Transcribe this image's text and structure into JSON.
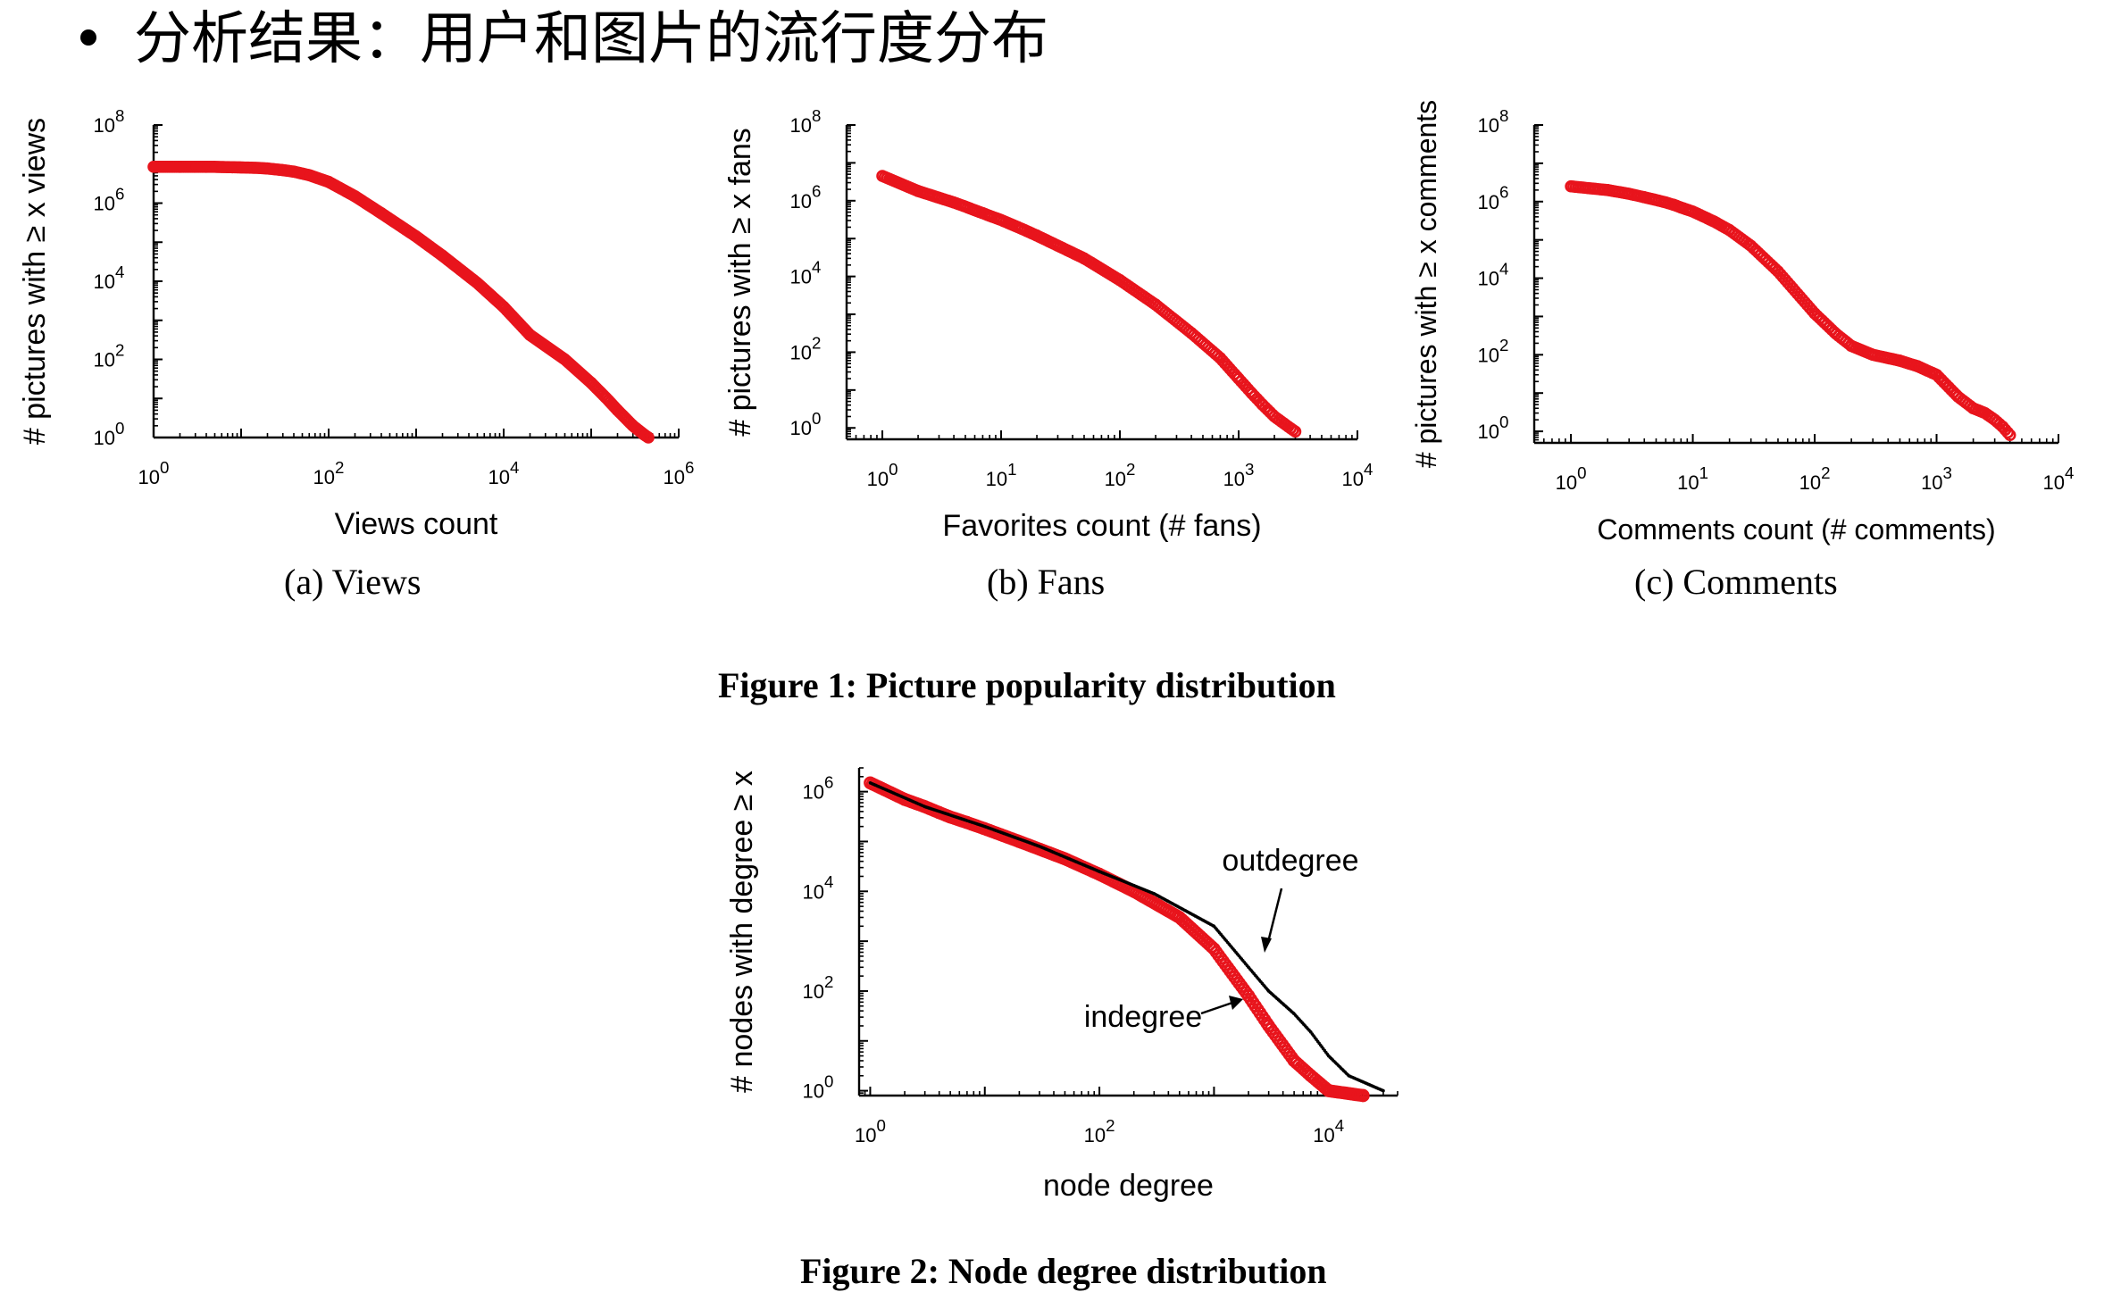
{
  "slide": {
    "heading": "分析结果：用户和图片的流行度分布",
    "figure1_caption": "Figure 1: Picture popularity distribution",
    "figure2_caption": "Figure 2: Node degree distribution"
  },
  "chart_data": [
    {
      "type": "scatter",
      "subcaption": "(a) Views",
      "xlabel": "Views count",
      "ylabel": "# pictures with ≥ x views",
      "xscale": "log",
      "yscale": "log",
      "xlim": [
        1,
        1000000
      ],
      "ylim": [
        1,
        100000000
      ],
      "xticks": [
        "10^0",
        "10^2",
        "10^4",
        "10^6"
      ],
      "yticks": [
        "10^0",
        "10^2",
        "10^4",
        "10^6",
        "10^8"
      ],
      "series": [
        {
          "color": "#e8141c",
          "x": [
            1,
            2,
            3,
            4,
            5,
            6,
            8,
            10,
            15,
            20,
            30,
            40,
            60,
            100,
            200,
            400,
            1000,
            2000,
            5000,
            10000,
            20000,
            50000,
            100000,
            150000,
            200000,
            300000,
            400000,
            450000
          ],
          "y": [
            8500000,
            8500000,
            8500000,
            8500000,
            8500000,
            8400000,
            8300000,
            8200000,
            8000000,
            7700000,
            7000000,
            6400000,
            5200000,
            3500000,
            1500000,
            550000,
            140000,
            45000,
            9000,
            2200,
            420,
            100,
            25,
            10,
            5,
            2,
            1.2,
            1
          ]
        }
      ]
    },
    {
      "type": "scatter",
      "subcaption": "(b) Fans",
      "xlabel": "Favorites count (# fans)",
      "ylabel": "# pictures with ≥ x fans",
      "xscale": "log",
      "yscale": "log",
      "xlim": [
        0.5,
        10000
      ],
      "ylim": [
        0.5,
        100000000
      ],
      "xticks": [
        "10^0",
        "10^1",
        "10^2",
        "10^3",
        "10^4"
      ],
      "yticks": [
        "10^0",
        "10^2",
        "10^4",
        "10^6",
        "10^8"
      ],
      "series": [
        {
          "color": "#e8141c",
          "x": [
            1,
            2,
            3,
            4,
            5,
            6,
            7,
            8,
            10,
            15,
            20,
            30,
            50,
            100,
            200,
            400,
            700,
            1000,
            1300,
            1600,
            2000,
            2500,
            3000
          ],
          "y": [
            4500000,
            1800000,
            1200000,
            900000,
            700000,
            560000,
            470000,
            400000,
            310000,
            180000,
            120000,
            65000,
            30000,
            8000,
            1800,
            320,
            70,
            20,
            8,
            4,
            2,
            1.2,
            0.8
          ]
        }
      ]
    },
    {
      "type": "scatter",
      "subcaption": "(c) Comments",
      "xlabel": "Comments count (# comments)",
      "ylabel": "# pictures with ≥ x comments",
      "xscale": "log",
      "yscale": "log",
      "xlim": [
        0.5,
        10000
      ],
      "ylim": [
        0.5,
        100000000
      ],
      "xticks": [
        "10^0",
        "10^1",
        "10^2",
        "10^3",
        "10^4"
      ],
      "yticks": [
        "10^0",
        "10^2",
        "10^4",
        "10^6",
        "10^8"
      ],
      "series": [
        {
          "color": "#e8141c",
          "x": [
            1,
            2,
            3,
            4,
            5,
            6,
            7,
            8,
            10,
            15,
            20,
            30,
            50,
            100,
            150,
            200,
            300,
            500,
            700,
            1000,
            1500,
            2000,
            2500,
            3000,
            3500,
            4000
          ],
          "y": [
            2500000,
            2000000,
            1600000,
            1300000,
            1100000,
            950000,
            820000,
            700000,
            550000,
            300000,
            180000,
            70000,
            15000,
            1200,
            350,
            170,
            100,
            70,
            50,
            30,
            8,
            4,
            3,
            2,
            1.3,
            0.8
          ]
        }
      ]
    },
    {
      "type": "scatter",
      "subcaption": "",
      "xlabel": "node degree",
      "ylabel": "# nodes with degree ≥ x",
      "xscale": "log",
      "yscale": "log",
      "xlim": [
        0.8,
        40000
      ],
      "ylim": [
        0.8,
        3000000
      ],
      "xticks": [
        "10^0",
        "10^2",
        "10^4"
      ],
      "yticks": [
        "10^0",
        "10^2",
        "10^4",
        "10^6"
      ],
      "annotations": [
        "outdegree",
        "indegree"
      ],
      "series": [
        {
          "name": "indegree",
          "color": "#e8141c",
          "x": [
            1,
            2,
            3,
            4,
            5,
            7,
            10,
            20,
            50,
            100,
            200,
            500,
            1000,
            2000,
            3000,
            5000,
            7000,
            10000,
            20000
          ],
          "y": [
            1500000,
            700000,
            500000,
            380000,
            310000,
            240000,
            180000,
            100000,
            45000,
            22000,
            10000,
            3000,
            700,
            80,
            20,
            4,
            2,
            1,
            0.8
          ]
        },
        {
          "name": "outdegree",
          "color": "#000000",
          "x": [
            1,
            3,
            10,
            30,
            100,
            300,
            1000,
            2000,
            3000,
            5000,
            7000,
            10000,
            15000,
            20000,
            30000
          ],
          "y": [
            1500000,
            500000,
            200000,
            80000,
            25000,
            9000,
            2000,
            300,
            100,
            35,
            15,
            5,
            2,
            1.5,
            1
          ]
        }
      ]
    }
  ]
}
